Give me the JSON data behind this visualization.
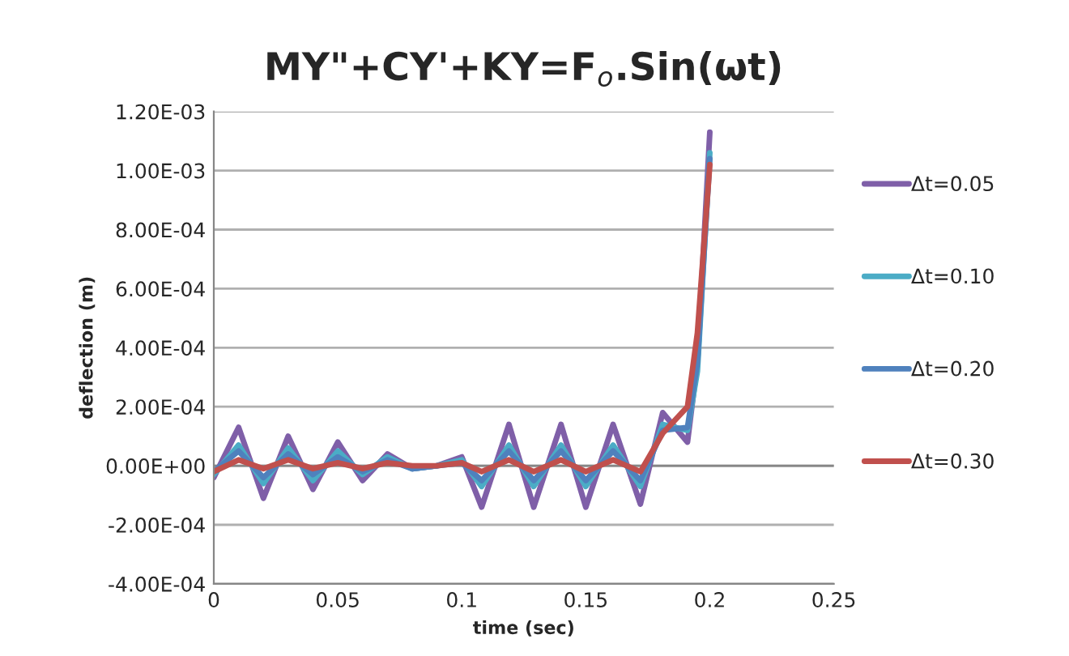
{
  "chart_data": {
    "type": "line",
    "title": "MY\"+CY'+KY=F$_{o}$.Sin(ωt)",
    "xlabel": "time (sec)",
    "ylabel": "deflection (m)",
    "x": [
      0,
      0.01,
      0.02,
      0.03,
      0.04,
      0.05,
      0.06,
      0.07,
      0.08,
      0.09,
      0.1,
      0.108,
      0.119,
      0.129,
      0.14,
      0.15,
      0.161,
      0.172,
      0.181,
      0.191,
      0.195,
      0.2
    ],
    "series": [
      {
        "name": "Δt=0.05",
        "color": "#7f5fa8",
        "values": [
          -4e-05,
          0.00013,
          -0.00011,
          0.0001,
          -8e-05,
          8e-05,
          -5e-05,
          4e-05,
          -1e-05,
          0,
          3e-05,
          -0.00014,
          0.00014,
          -0.00014,
          0.00014,
          -0.00014,
          0.00014,
          -0.00013,
          0.00018,
          8e-05,
          0.00035,
          0.00113
        ]
      },
      {
        "name": "Δt=0.10",
        "color": "#4bacc6",
        "values": [
          -3e-05,
          7e-05,
          -6e-05,
          6e-05,
          -5e-05,
          5e-05,
          -3e-05,
          3e-05,
          -1e-05,
          0,
          2e-05,
          -7e-05,
          7e-05,
          -7e-05,
          7e-05,
          -7e-05,
          7e-05,
          -7e-05,
          0.00014,
          0.00012,
          0.00032,
          0.00106
        ]
      },
      {
        "name": "Δt=0.20",
        "color": "#4f81bd",
        "values": [
          -2e-05,
          5e-05,
          -4e-05,
          4e-05,
          -3e-05,
          3e-05,
          -2e-05,
          2e-05,
          -1e-05,
          0,
          1e-05,
          -5e-05,
          5e-05,
          -5e-05,
          5e-05,
          -5e-05,
          5e-05,
          -5e-05,
          0.00012,
          0.00013,
          0.00035,
          0.00104
        ]
      },
      {
        "name": "Δt=0.30",
        "color": "#c0504d",
        "values": [
          -2e-05,
          2e-05,
          -1e-05,
          2e-05,
          -1e-05,
          1e-05,
          -1e-05,
          1e-05,
          0,
          0,
          1e-05,
          -2e-05,
          2e-05,
          -2e-05,
          2e-05,
          -2e-05,
          2e-05,
          -2e-05,
          0.00011,
          0.0002,
          0.00045,
          0.00102
        ]
      }
    ],
    "xlim": [
      0,
      0.25
    ],
    "xticks": [
      0,
      0.05,
      0.1,
      0.15,
      0.2,
      0.25
    ],
    "ylim": [
      -0.0004,
      0.0012
    ],
    "yticks": [
      {
        "value": -0.0004,
        "label": "-4.00E-04"
      },
      {
        "value": -0.0002,
        "label": "-2.00E-04"
      },
      {
        "value": 0,
        "label": "0.00E+00"
      },
      {
        "value": 0.0002,
        "label": "2.00E-04"
      },
      {
        "value": 0.0004,
        "label": "4.00E-04"
      },
      {
        "value": 0.0006,
        "label": "6.00E-04"
      },
      {
        "value": 0.0008,
        "label": "8.00E-04"
      },
      {
        "value": 0.001,
        "label": "1.00E-03"
      },
      {
        "value": 0.0012,
        "label": "1.20E-03"
      }
    ],
    "grid": "y",
    "legend": "right",
    "line_style": "solid"
  }
}
